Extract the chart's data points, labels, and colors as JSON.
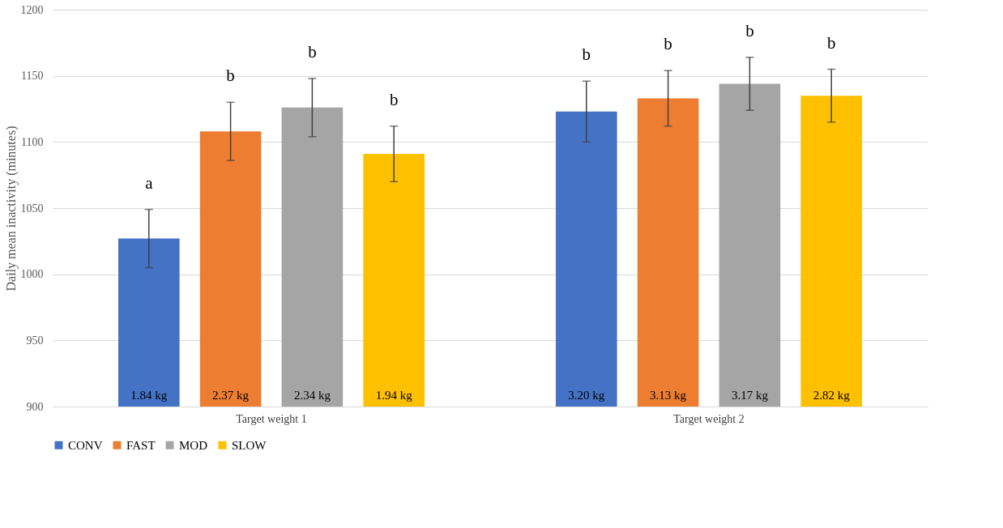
{
  "chart_data": {
    "type": "bar",
    "ylabel": "Daily mean inactivity (minutes)",
    "categories": [
      "Target weight 1",
      "Target weight 2"
    ],
    "series": [
      {
        "name": "CONV",
        "color": "#4472c4",
        "values": [
          1027,
          1123
        ],
        "errors": [
          22,
          23
        ]
      },
      {
        "name": "FAST",
        "color": "#ed7d31",
        "values": [
          1108,
          1133
        ],
        "errors": [
          22,
          21
        ]
      },
      {
        "name": "MOD",
        "color": "#a5a5a5",
        "values": [
          1126,
          1144
        ],
        "errors": [
          22,
          20
        ]
      },
      {
        "name": "SLOW",
        "color": "#ffc000",
        "values": [
          1091,
          1135
        ],
        "errors": [
          21,
          20
        ]
      }
    ],
    "ylim": [
      900,
      1200
    ],
    "yticks": [
      900,
      950,
      1000,
      1050,
      1100,
      1150,
      1200
    ],
    "grid": "y",
    "legend": "bottom",
    "annotations": [
      "a",
      "b",
      "b",
      "b",
      "b",
      "b",
      "b",
      "b",
      "1.84 kg",
      "2.37 kg",
      "2.34 kg",
      "1.94 kg",
      "3.20 kg",
      "3.13 kg",
      "3.17 kg",
      "2.82 kg"
    ]
  }
}
